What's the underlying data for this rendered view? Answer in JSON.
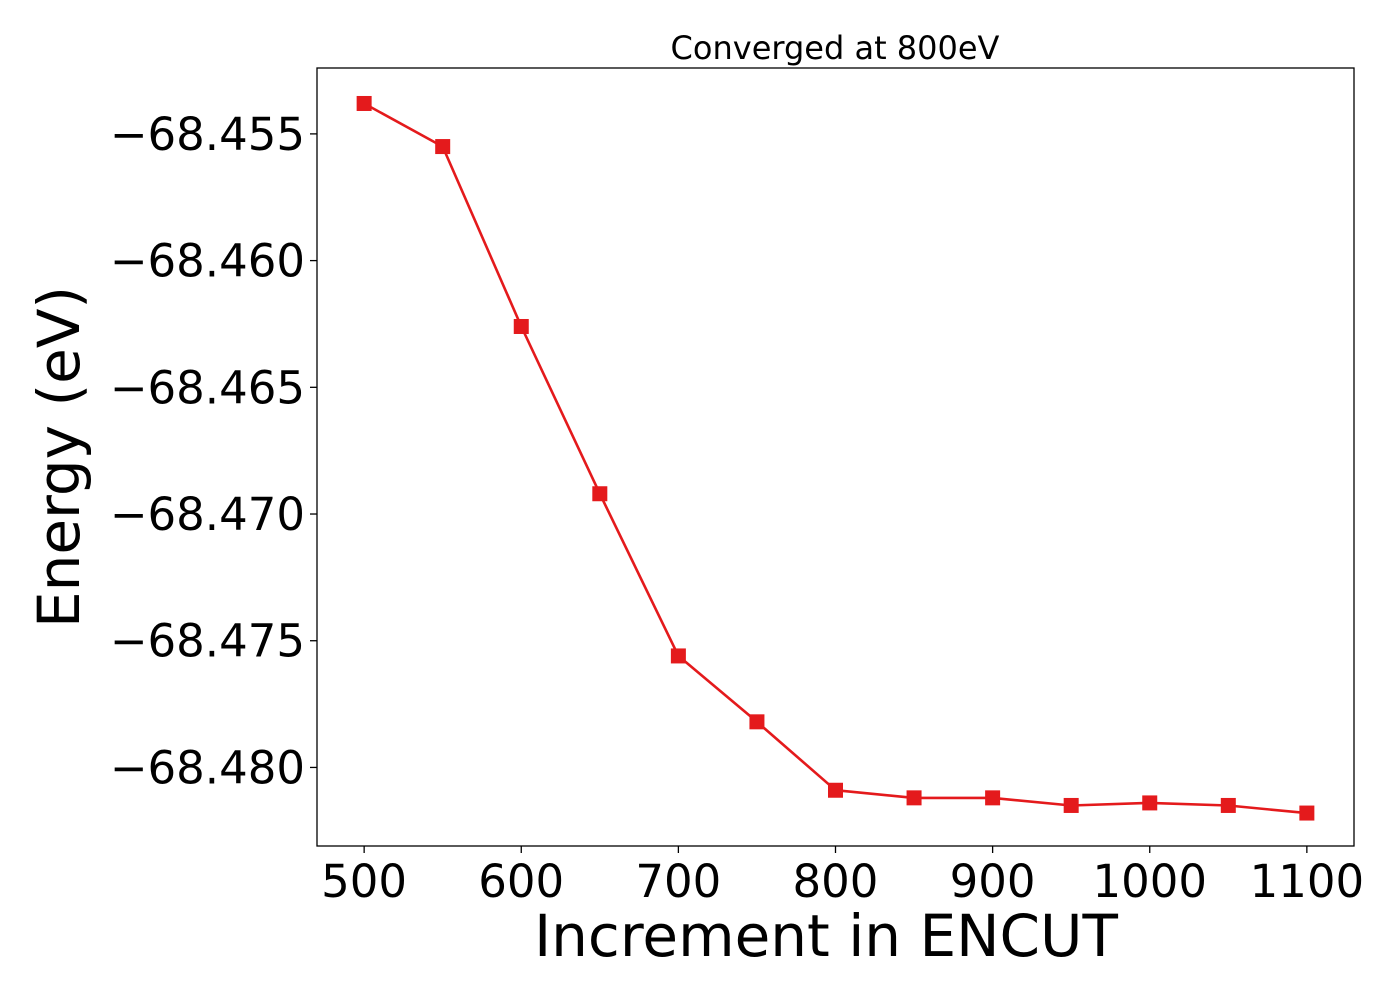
{
  "chart_data": {
    "type": "line",
    "title": "Converged at 800eV",
    "xlabel": "Increment in ENCUT",
    "ylabel": "Energy (eV)",
    "xlim": [
      470,
      1130
    ],
    "ylim": [
      -68.4831,
      -68.4524
    ],
    "x_ticks": [
      500,
      600,
      700,
      800,
      900,
      1000,
      1100
    ],
    "x_tick_labels": [
      "500",
      "600",
      "700",
      "800",
      "900",
      "1000",
      "1100"
    ],
    "y_ticks": [
      -68.455,
      -68.46,
      -68.465,
      -68.47,
      -68.475,
      -68.48
    ],
    "y_tick_labels": [
      "−68.455",
      "−68.460",
      "−68.465",
      "−68.470",
      "−68.475",
      "−68.480"
    ],
    "grid": false,
    "series": [
      {
        "color": "#e41a1c",
        "marker": "square",
        "x": [
          500,
          550,
          600,
          650,
          700,
          750,
          800,
          850,
          900,
          950,
          1000,
          1050,
          1100
        ],
        "y": [
          -68.4538,
          -68.4555,
          -68.4626,
          -68.4692,
          -68.4756,
          -68.4782,
          -68.4809,
          -68.4812,
          -68.4812,
          -68.4815,
          -68.4814,
          -68.4815,
          -68.4818
        ]
      }
    ]
  }
}
